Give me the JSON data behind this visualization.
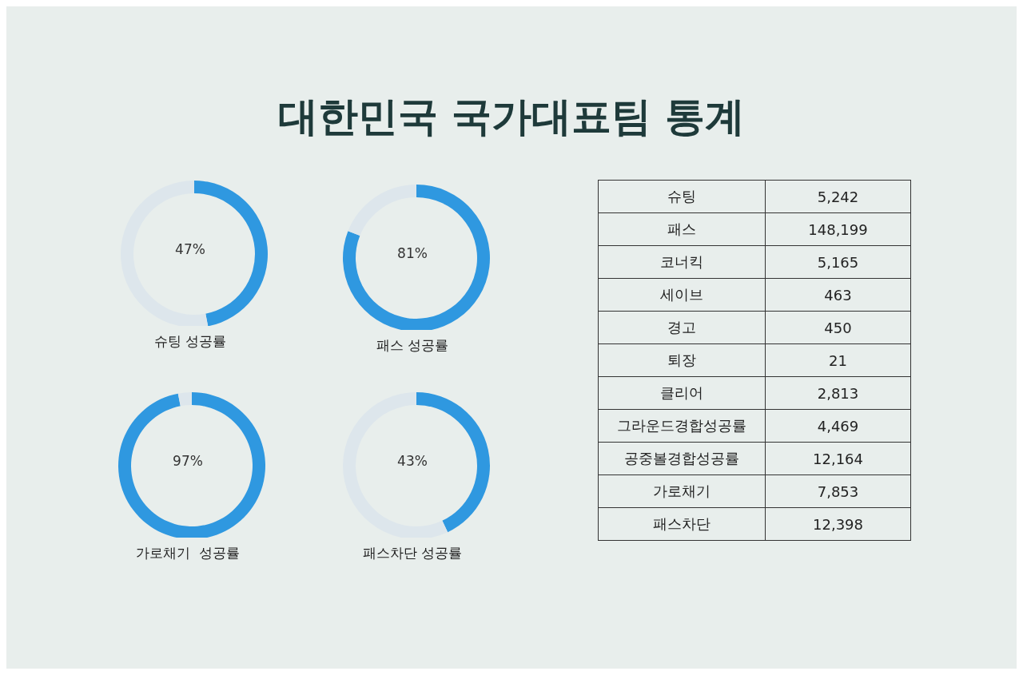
{
  "chart_data": [
    {
      "type": "donut",
      "title": "대한민국 국가대표팀 통계",
      "xlabel": "슈팅 성공률",
      "categories": [
        null,
        null
      ],
      "values": [
        47,
        53
      ],
      "colors": [
        "#2f98e0",
        "#dde6ec"
      ],
      "annotations": [
        "47%"
      ]
    },
    {
      "type": "donut",
      "xlabel": "패스 성공률",
      "categories": [
        null,
        null
      ],
      "values": [
        81,
        19
      ],
      "colors": [
        "#2f98e0",
        "#dde6ec"
      ],
      "annotations": [
        "81%"
      ]
    },
    {
      "type": "donut",
      "xlabel": "가로채기  성공률",
      "categories": [
        null,
        null
      ],
      "values": [
        97,
        3
      ],
      "colors": [
        "#2f98e0",
        "#dde6ec"
      ],
      "annotations": [
        "97%"
      ]
    },
    {
      "type": "donut",
      "xlabel": "패스차단 성공률",
      "categories": [
        null,
        null
      ],
      "values": [
        43,
        57
      ],
      "colors": [
        "#2f98e0",
        "#dde6ec"
      ],
      "annotations": [
        "43%"
      ]
    },
    {
      "type": "other",
      "categories": [
        "슈팅",
        "패스",
        "코너킥",
        "세이브",
        "경고",
        "퇴장",
        "클리어",
        "그라운드경합성공률",
        "공중볼경합성공률",
        "가로채기",
        "패스차단"
      ],
      "value_labels": [
        "5,242",
        "148,199",
        "5,165",
        "463",
        "450",
        "21",
        "2,813",
        "4,469",
        "12,164",
        "7,853",
        "12,398"
      ]
    }
  ]
}
